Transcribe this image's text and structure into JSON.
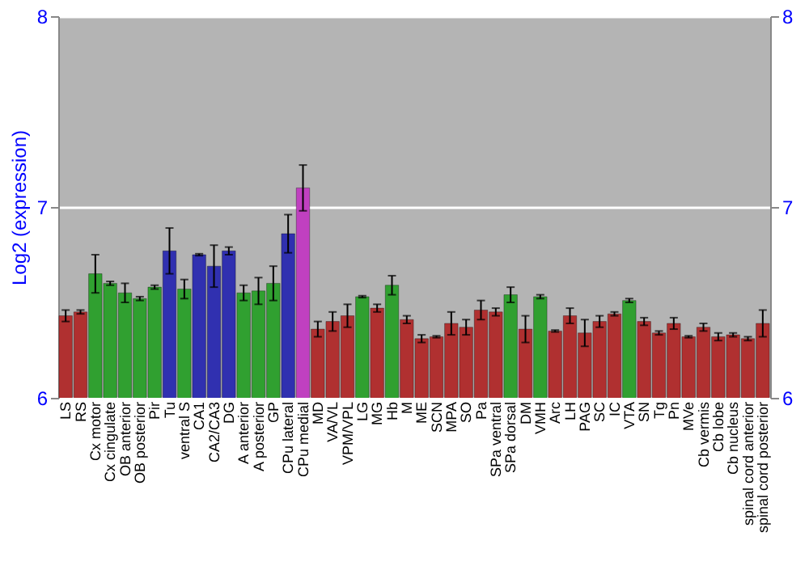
{
  "chart_data": {
    "type": "bar",
    "ylabel": "Log2 (expression)",
    "categories": [
      "LS",
      "RS",
      "Cx motor",
      "Cx cingulate",
      "OB anterior",
      "OB posterior",
      "Pir",
      "Tu",
      "ventral S",
      "CA1",
      "CA2/CA3",
      "DG",
      "A anterior",
      "A posterior",
      "GP",
      "CPu lateral",
      "CPu medial",
      "MD",
      "VA/VL",
      "VPM/VPL",
      "LG",
      "MG",
      "Hb",
      "M",
      "ME",
      "SCN",
      "MPA",
      "SO",
      "Pa",
      "SPa ventral",
      "SPa dorsal",
      "DM",
      "VMH",
      "Arc",
      "LH",
      "PAG",
      "SC",
      "IC",
      "VTA",
      "SN",
      "Tg",
      "Pn",
      "MVe",
      "Cb vermis",
      "Cb lobe",
      "Cb nucleus",
      "spinal cord anterior",
      "spinal cord posterior"
    ],
    "values": [
      6.43,
      6.45,
      6.65,
      6.6,
      6.55,
      6.52,
      6.58,
      6.77,
      6.57,
      6.75,
      6.69,
      6.77,
      6.55,
      6.56,
      6.6,
      6.86,
      7.1,
      6.36,
      6.4,
      6.43,
      6.53,
      6.47,
      6.59,
      6.41,
      6.31,
      6.32,
      6.39,
      6.37,
      6.46,
      6.45,
      6.54,
      6.36,
      6.53,
      6.35,
      6.43,
      6.34,
      6.4,
      6.44,
      6.51,
      6.4,
      6.34,
      6.39,
      6.32,
      6.37,
      6.32,
      6.33,
      6.31,
      6.39
    ],
    "errors": [
      0.03,
      0.01,
      0.1,
      0.01,
      0.05,
      0.01,
      0.01,
      0.12,
      0.05,
      0.005,
      0.11,
      0.02,
      0.04,
      0.07,
      0.09,
      0.1,
      0.12,
      0.04,
      0.05,
      0.06,
      0.005,
      0.02,
      0.05,
      0.02,
      0.02,
      0.005,
      0.06,
      0.04,
      0.05,
      0.02,
      0.04,
      0.07,
      0.01,
      0.005,
      0.04,
      0.07,
      0.03,
      0.01,
      0.01,
      0.02,
      0.01,
      0.03,
      0.005,
      0.02,
      0.02,
      0.01,
      0.01,
      0.07
    ],
    "colors": [
      "#b03030",
      "#b03030",
      "#30a030",
      "#30a030",
      "#30a030",
      "#30a030",
      "#30a030",
      "#3030b0",
      "#30a030",
      "#3030b0",
      "#3030b0",
      "#3030b0",
      "#30a030",
      "#30a030",
      "#30a030",
      "#3030b0",
      "#c040c0",
      "#b03030",
      "#b03030",
      "#b03030",
      "#30a030",
      "#b03030",
      "#30a030",
      "#b03030",
      "#b03030",
      "#b03030",
      "#b03030",
      "#b03030",
      "#b03030",
      "#b03030",
      "#30a030",
      "#b03030",
      "#30a030",
      "#b03030",
      "#b03030",
      "#b03030",
      "#b03030",
      "#b03030",
      "#30a030",
      "#b03030",
      "#b03030",
      "#b03030",
      "#b03030",
      "#b03030",
      "#b03030",
      "#b03030",
      "#b03030",
      "#b03030"
    ],
    "ylim": [
      6,
      8
    ],
    "yticks": [
      6,
      7,
      8
    ],
    "y2lim": [
      6,
      8
    ],
    "y2ticks": [
      6,
      7,
      8
    ],
    "grid": "y"
  }
}
